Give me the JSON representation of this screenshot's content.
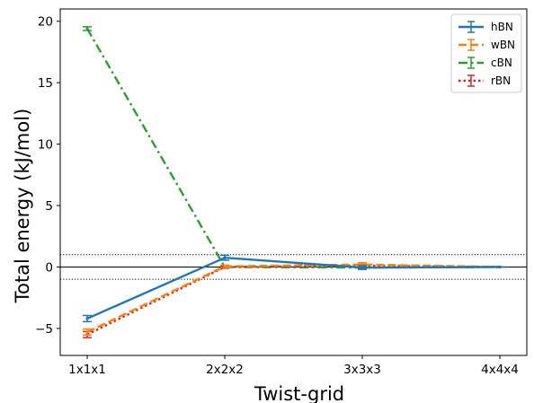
{
  "chart_data": {
    "type": "line",
    "title": "",
    "xlabel": "Twist-grid",
    "ylabel": "Total energy (kJ/mol)",
    "categories": [
      "1x1x1",
      "2x2x2",
      "3x3x3",
      "4x4x4"
    ],
    "ylim": [
      -7.2,
      21.0
    ],
    "yticks": [
      -5,
      0,
      5,
      10,
      15,
      20
    ],
    "yticklabels": [
      "−5",
      "0",
      "5",
      "10",
      "15",
      "20"
    ],
    "grid": false,
    "legend_position": "top-right",
    "reference_lines": [
      {
        "y": 0,
        "style": "solid"
      },
      {
        "y": 1,
        "style": "dotted"
      },
      {
        "y": -1,
        "style": "dotted"
      }
    ],
    "series": [
      {
        "name": "hBN",
        "color": "#1f77b4",
        "linestyle": "solid",
        "values": [
          -4.2,
          0.75,
          -0.05,
          0.0
        ],
        "errors": [
          0.25,
          0.2,
          0.15,
          0.0
        ]
      },
      {
        "name": "wBN",
        "color": "#ff7f0e",
        "linestyle": "dashed",
        "values": [
          -5.3,
          0.05,
          0.2,
          0.0
        ],
        "errors": [
          0.25,
          0.1,
          0.15,
          0.0
        ]
      },
      {
        "name": "cBN",
        "color": "#2ca02c",
        "linestyle": "dashdot",
        "values": [
          19.4,
          0.0,
          -0.05,
          0.0
        ],
        "errors": [
          0.15,
          0.1,
          0.1,
          0.0
        ]
      },
      {
        "name": "rBN",
        "color": "#d62728",
        "linestyle": "dotted",
        "values": [
          -5.5,
          0.0,
          0.1,
          0.0
        ],
        "errors": [
          0.25,
          0.1,
          0.1,
          0.0
        ]
      }
    ]
  }
}
